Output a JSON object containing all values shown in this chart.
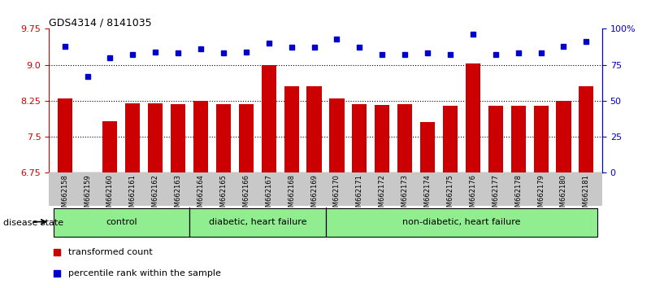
{
  "title": "GDS4314 / 8141035",
  "samples": [
    "GSM662158",
    "GSM662159",
    "GSM662160",
    "GSM662161",
    "GSM662162",
    "GSM662163",
    "GSM662164",
    "GSM662165",
    "GSM662166",
    "GSM662167",
    "GSM662168",
    "GSM662169",
    "GSM662170",
    "GSM662171",
    "GSM662172",
    "GSM662173",
    "GSM662174",
    "GSM662175",
    "GSM662176",
    "GSM662177",
    "GSM662178",
    "GSM662179",
    "GSM662180",
    "GSM662181"
  ],
  "bar_values": [
    8.3,
    6.65,
    7.82,
    8.2,
    8.2,
    8.18,
    8.25,
    8.18,
    8.18,
    9.0,
    8.55,
    8.55,
    8.3,
    8.18,
    8.16,
    8.18,
    7.8,
    8.15,
    9.03,
    8.15,
    8.15,
    8.15,
    8.25,
    8.55
  ],
  "dot_values_pct": [
    88,
    67,
    80,
    82,
    84,
    83,
    86,
    83,
    84,
    90,
    87,
    87,
    93,
    87,
    82,
    82,
    83,
    82,
    96,
    82,
    83,
    83,
    88,
    91
  ],
  "ylim_left": [
    6.75,
    9.75
  ],
  "ylim_right": [
    0,
    100
  ],
  "yticks_left": [
    6.75,
    7.5,
    8.25,
    9.0,
    9.75
  ],
  "yticks_right": [
    0,
    25,
    50,
    75,
    100
  ],
  "bar_color": "#cc0000",
  "dot_color": "#0000cc",
  "group_ranges": [
    [
      0,
      5,
      "control"
    ],
    [
      6,
      11,
      "diabetic, heart failure"
    ],
    [
      12,
      23,
      "non-diabetic, heart failure"
    ]
  ],
  "disease_state_label": "disease state",
  "legend_bar_label": "transformed count",
  "legend_dot_label": "percentile rank within the sample",
  "bg_color": "#c8c8c8"
}
